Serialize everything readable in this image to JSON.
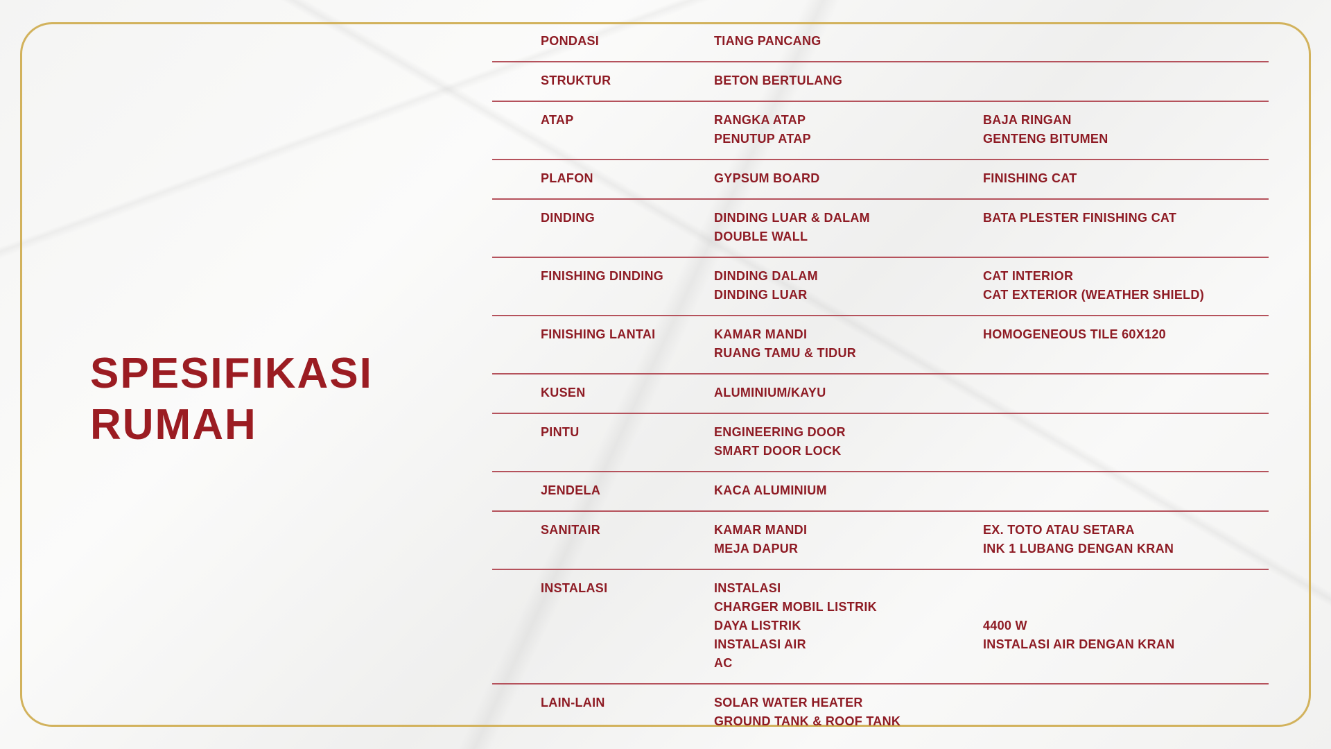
{
  "title": [
    "SPESIFIKASI",
    "RUMAH"
  ],
  "colors": {
    "text": "#8e1b24",
    "frame": "#d2b25c",
    "divider": "#b5525c"
  },
  "rows": [
    {
      "label": "PONDASI",
      "items": [
        "TIANG PANCANG"
      ],
      "values": []
    },
    {
      "label": "STRUKTUR",
      "items": [
        "BETON BERTULANG"
      ],
      "values": []
    },
    {
      "label": "ATAP",
      "items": [
        "RANGKA ATAP",
        "PENUTUP ATAP"
      ],
      "values": [
        "BAJA RINGAN",
        "GENTENG BITUMEN"
      ]
    },
    {
      "label": "PLAFON",
      "items": [
        "GYPSUM BOARD"
      ],
      "values": [
        "FINISHING CAT"
      ]
    },
    {
      "label": "DINDING",
      "items": [
        "DINDING LUAR & DALAM",
        "DOUBLE WALL"
      ],
      "values": [
        "BATA PLESTER FINISHING CAT"
      ]
    },
    {
      "label": "FINISHING DINDING",
      "items": [
        "DINDING DALAM",
        "DINDING LUAR"
      ],
      "values": [
        "CAT INTERIOR",
        "CAT EXTERIOR (WEATHER SHIELD)"
      ]
    },
    {
      "label": "FINISHING LANTAI",
      "items": [
        "KAMAR MANDI",
        "RUANG TAMU & TIDUR"
      ],
      "values": [
        "HOMOGENEOUS TILE 60X120"
      ]
    },
    {
      "label": "KUSEN",
      "items": [
        "ALUMINIUM/KAYU"
      ],
      "values": []
    },
    {
      "label": "PINTU",
      "items": [
        "ENGINEERING DOOR",
        "SMART DOOR LOCK"
      ],
      "values": []
    },
    {
      "label": "JENDELA",
      "items": [
        "KACA ALUMINIUM"
      ],
      "values": []
    },
    {
      "label": "SANITAIR",
      "items": [
        "KAMAR MANDI",
        "MEJA DAPUR"
      ],
      "values": [
        "EX. TOTO ATAU SETARA",
        "INK 1 LUBANG DENGAN KRAN"
      ]
    },
    {
      "label": "INSTALASI",
      "items": [
        "INSTALASI",
        "CHARGER MOBIL LISTRIK",
        "DAYA LISTRIK",
        "INSTALASI AIR",
        "AC"
      ],
      "values": [
        "",
        "",
        "4400 W",
        "INSTALASI AIR DENGAN KRAN"
      ]
    },
    {
      "label": "LAIN-LAIN",
      "items": [
        "SOLAR WATER HEATER",
        "GROUND TANK & ROOF TANK"
      ],
      "values": []
    }
  ]
}
